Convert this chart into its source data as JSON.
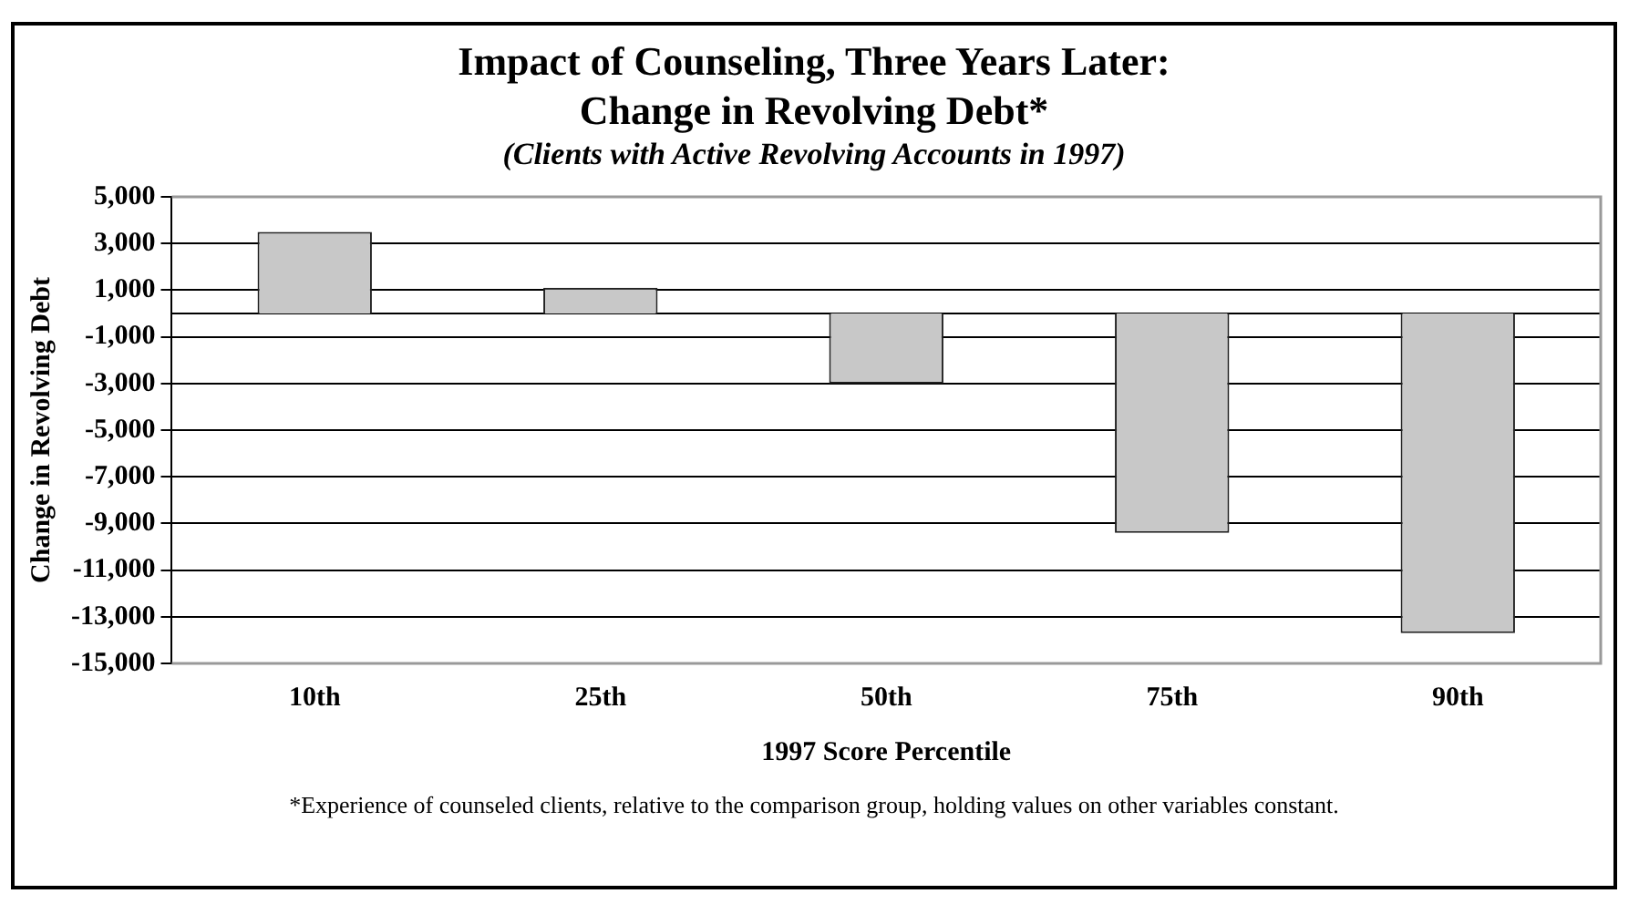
{
  "chart_data": {
    "type": "bar",
    "title": "Impact of Counseling, Three Years Later:\nChange in Revolving Debt*",
    "subtitle": "(Clients with Active Revolving Accounts in 1997)",
    "xlabel": "1997 Score Percentile",
    "ylabel": "Change in Revolving Debt",
    "categories": [
      "10th",
      "25th",
      "50th",
      "75th",
      "90th"
    ],
    "series": [
      {
        "color": "#c8c8c8",
        "values": [
          3500,
          1100,
          -3000,
          -9400,
          -13700
        ]
      }
    ],
    "ylim": [
      -15000,
      5000
    ],
    "yticks": [
      {
        "value": 5000,
        "label": "5,000"
      },
      {
        "value": 3000,
        "label": "3,000"
      },
      {
        "value": 1000,
        "label": "1,000"
      },
      {
        "value": -1000,
        "label": "-1,000"
      },
      {
        "value": -3000,
        "label": "-3,000"
      },
      {
        "value": -5000,
        "label": "-5,000"
      },
      {
        "value": -7000,
        "label": "-7,000"
      },
      {
        "value": -9000,
        "label": "-9,000"
      },
      {
        "value": -11000,
        "label": "-11,000"
      },
      {
        "value": -13000,
        "label": "-13,000"
      },
      {
        "value": -15000,
        "label": "-15,000"
      }
    ],
    "grid": "y",
    "legend": false,
    "annotations": [
      "*Experience of counseled clients, relative to the comparison group, holding values on other variables constant."
    ]
  }
}
